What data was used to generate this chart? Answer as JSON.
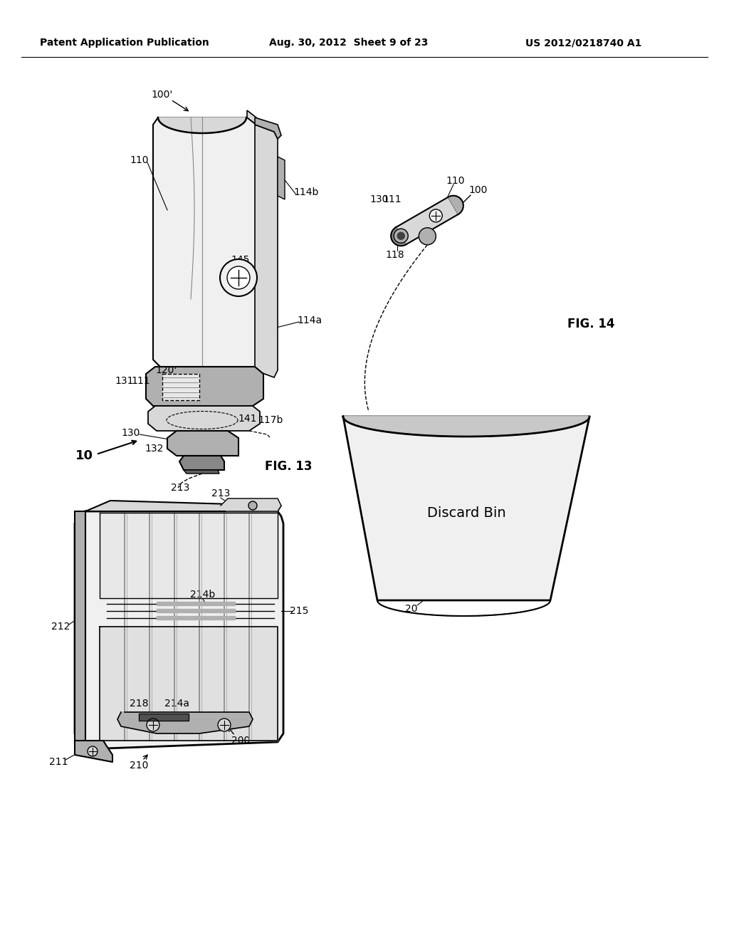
{
  "background_color": "#ffffff",
  "header_left": "Patent Application Publication",
  "header_center": "Aug. 30, 2012  Sheet 9 of 23",
  "header_right": "US 2012/0218740 A1",
  "fig13_label": "FIG. 13",
  "fig14_label": "FIG. 14",
  "discard_bin_label": "Discard Bin",
  "line_color": "#000000",
  "fill_light": "#f0f0f0",
  "fill_mid": "#d8d8d8",
  "fill_dark": "#b0b0b0",
  "fill_darker": "#888888"
}
